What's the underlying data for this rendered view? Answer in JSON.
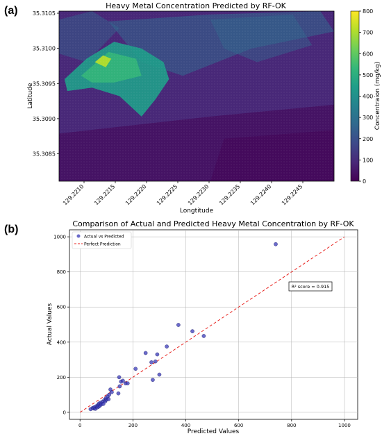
{
  "chart_data": [
    {
      "panel_label": "(a)",
      "type": "heatmap",
      "title": "Heavy Metal Concentration Predicted by RF-OK",
      "xlabel": "Longtitude",
      "ylabel": "Latitude",
      "xlim": [
        129.2206,
        129.225
      ],
      "ylim": [
        35.30811,
        35.31053
      ],
      "x_ticks": [
        129.221,
        129.2215,
        129.222,
        129.2225,
        129.223,
        129.2235,
        129.224,
        129.2245
      ],
      "x_tick_labels": [
        "129.2210",
        "129.2215",
        "129.2220",
        "129.2225",
        "129.2230",
        "129.2235",
        "129.2240",
        "129.2245"
      ],
      "y_ticks": [
        35.3085,
        35.309,
        35.3095,
        35.31,
        35.3105
      ],
      "y_tick_labels": [
        "35.3085",
        "35.3090",
        "35.3095",
        "35.3100",
        "35.3105"
      ],
      "colorbar": {
        "label": "Concentraion (mg/kg)",
        "min": 0,
        "max": 800,
        "ticks": [
          0,
          100,
          200,
          300,
          400,
          500,
          600,
          700,
          800
        ],
        "tick_labels": [
          "0",
          "100",
          "200",
          "300",
          "400",
          "500",
          "600",
          "700",
          "800"
        ],
        "colormap": [
          "#440154",
          "#482878",
          "#3e4989",
          "#31688e",
          "#26828e",
          "#1f9e89",
          "#35b779",
          "#6ece58",
          "#b5de2b",
          "#fde725"
        ]
      },
      "background_value": 130,
      "high_zone_value": 480,
      "peak_value": 720
    },
    {
      "panel_label": "(b)",
      "type": "scatter",
      "title": "Comparison of Actual and Predicted Heavy Metal Concentration by RF-OK",
      "xlabel": "Predicted Values",
      "ylabel": "Actual Values",
      "xlim": [
        -40,
        1050
      ],
      "ylim": [
        -40,
        1040
      ],
      "x_ticks": [
        0,
        200,
        400,
        600,
        800,
        1000
      ],
      "y_ticks": [
        0,
        200,
        400,
        600,
        800,
        1000
      ],
      "grid": true,
      "legend_position": "top-left",
      "legend": [
        "Actual vs Predicted",
        "Perfect Prediction"
      ],
      "annotation": "R² score = 0.915",
      "point_color": "#3a3ab8",
      "line_color": "#e8231f",
      "perfect_line": {
        "x": [
          0,
          1000
        ],
        "y": [
          0,
          1000
        ]
      },
      "points": [
        {
          "x": 40,
          "y": 18
        },
        {
          "x": 48,
          "y": 25
        },
        {
          "x": 52,
          "y": 22
        },
        {
          "x": 55,
          "y": 30
        },
        {
          "x": 58,
          "y": 20
        },
        {
          "x": 62,
          "y": 35
        },
        {
          "x": 65,
          "y": 28
        },
        {
          "x": 68,
          "y": 42
        },
        {
          "x": 70,
          "y": 32
        },
        {
          "x": 72,
          "y": 50
        },
        {
          "x": 75,
          "y": 38
        },
        {
          "x": 78,
          "y": 55
        },
        {
          "x": 80,
          "y": 45
        },
        {
          "x": 85,
          "y": 60
        },
        {
          "x": 88,
          "y": 48
        },
        {
          "x": 92,
          "y": 70
        },
        {
          "x": 95,
          "y": 62
        },
        {
          "x": 98,
          "y": 80
        },
        {
          "x": 100,
          "y": 72
        },
        {
          "x": 104,
          "y": 90
        },
        {
          "x": 108,
          "y": 75
        },
        {
          "x": 110,
          "y": 100
        },
        {
          "x": 115,
          "y": 130
        },
        {
          "x": 120,
          "y": 115
        },
        {
          "x": 145,
          "y": 108
        },
        {
          "x": 148,
          "y": 200
        },
        {
          "x": 150,
          "y": 148
        },
        {
          "x": 155,
          "y": 175
        },
        {
          "x": 162,
          "y": 180
        },
        {
          "x": 172,
          "y": 165
        },
        {
          "x": 180,
          "y": 165
        },
        {
          "x": 210,
          "y": 248
        },
        {
          "x": 248,
          "y": 338
        },
        {
          "x": 270,
          "y": 285
        },
        {
          "x": 275,
          "y": 185
        },
        {
          "x": 285,
          "y": 290
        },
        {
          "x": 292,
          "y": 330
        },
        {
          "x": 300,
          "y": 215
        },
        {
          "x": 328,
          "y": 375
        },
        {
          "x": 372,
          "y": 498
        },
        {
          "x": 425,
          "y": 462
        },
        {
          "x": 468,
          "y": 435
        },
        {
          "x": 740,
          "y": 958
        }
      ]
    }
  ]
}
